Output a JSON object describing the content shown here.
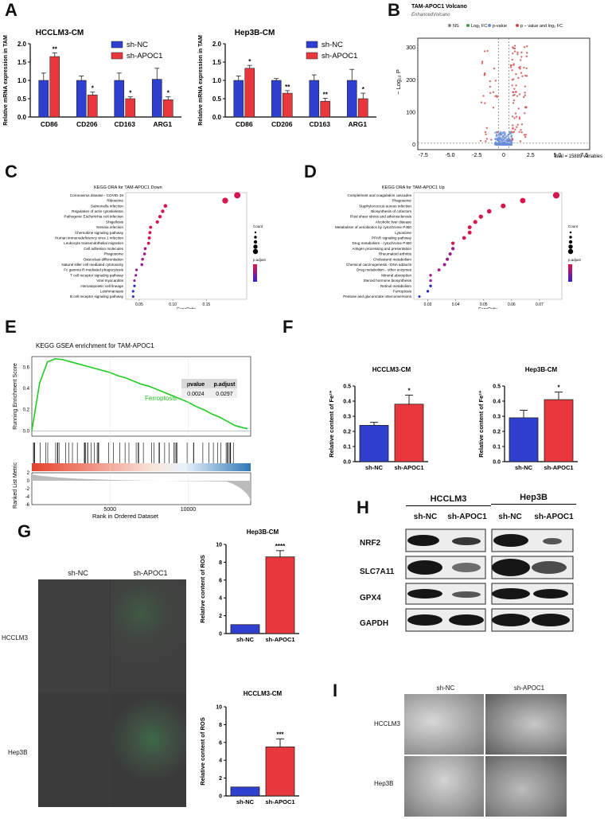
{
  "panel_labels": {
    "A": "A",
    "B": "B",
    "C": "C",
    "D": "D",
    "E": "E",
    "F": "F",
    "G": "G",
    "H": "H",
    "I": "I"
  },
  "colors": {
    "nc": "#2f3fd0",
    "apoc1": "#e8383d",
    "green": "#22bb22",
    "gsea_line": "#22cc22"
  },
  "chart_data": [
    {
      "id": "A1",
      "type": "bar",
      "title": "HCCLM3-CM",
      "ylabel": "Relative mRNA expression in TAM",
      "categories": [
        "CD86",
        "CD206",
        "CD163",
        "ARG1"
      ],
      "series": [
        {
          "name": "sh-NC",
          "values": [
            1.0,
            1.0,
            1.0,
            1.03
          ],
          "errors": [
            0.2,
            0.12,
            0.2,
            0.3
          ]
        },
        {
          "name": "sh-APOC1",
          "values": [
            1.65,
            0.6,
            0.5,
            0.47
          ],
          "errors": [
            0.1,
            0.08,
            0.05,
            0.08
          ]
        }
      ],
      "sig": [
        "**",
        "*",
        "*",
        "*"
      ],
      "ylim": [
        0,
        2.0
      ],
      "yticks": [
        "0.0",
        "0.5",
        "1.0",
        "1.5",
        "2.0"
      ]
    },
    {
      "id": "A2",
      "type": "bar",
      "title": "Hep3B-CM",
      "ylabel": "Relative mRNA expression in TAM",
      "categories": [
        "CD86",
        "CD206",
        "CD163",
        "ARG1"
      ],
      "series": [
        {
          "name": "sh-NC",
          "values": [
            1.0,
            1.0,
            1.0,
            1.0
          ],
          "errors": [
            0.12,
            0.05,
            0.15,
            0.3
          ]
        },
        {
          "name": "sh-APOC1",
          "values": [
            1.33,
            0.65,
            0.43,
            0.5
          ],
          "errors": [
            0.08,
            0.07,
            0.08,
            0.15
          ]
        }
      ],
      "sig": [
        "*",
        "**",
        "**",
        "*"
      ],
      "ylim": [
        0,
        2.0
      ],
      "yticks": [
        "0.0",
        "0.5",
        "1.0",
        "1.5",
        "2.0"
      ]
    },
    {
      "id": "B",
      "type": "scatter",
      "title": "TAM-APOC1 Volcano",
      "subtitle": "EnhancedVolcano",
      "legend": [
        "NS",
        "Log₂ FC",
        "p-value",
        "p − value and log₂ FC"
      ],
      "xlabel": "Log₂ fold change",
      "ylabel": "− Log₁₀ P",
      "xticks": [
        "-7.5",
        "-5.0",
        "-2.5",
        "0",
        "2.5",
        "5.0",
        "7.5"
      ],
      "yticks": [
        "0",
        "100",
        "200",
        "300"
      ],
      "caption": "total = 15889 variables"
    },
    {
      "id": "C",
      "type": "scatter",
      "title": "KEGG ORA for TAM-APOC1 Down",
      "xlabel": "GeneRatio",
      "terms": [
        "Coronavirus disease - COVID-19",
        "Ribosome",
        "Salmonella infection",
        "Regulation of actin cytoskeleton",
        "Pathogenic Escherichia coli infection",
        "Shigellosis",
        "Yersinia infection",
        "Chemokine signaling pathway",
        "Human immunodeficiency virus 1 infection",
        "Leukocyte transendothelial migration",
        "Cell adhesion molecules",
        "Phagosome",
        "Osteoclast differentiation",
        "Natural killer cell mediated cytotoxicity",
        "Fc gamma R-mediated phagocytosis",
        "T cell receptor signaling pathway",
        "Viral myocarditis",
        "Hematopoietic cell lineage",
        "Leishmaniasis",
        "B cell receptor signaling pathway"
      ],
      "x": [
        0.196,
        0.178,
        0.089,
        0.085,
        0.081,
        0.077,
        0.067,
        0.066,
        0.065,
        0.064,
        0.059,
        0.058,
        0.055,
        0.054,
        0.046,
        0.045,
        0.043,
        0.043,
        0.041,
        0.041
      ],
      "xticks": [
        "0.05",
        "0.10",
        "0.15"
      ],
      "xtick_values": [
        0.05,
        0.1,
        0.15
      ],
      "xlim": [
        0.03,
        0.21
      ],
      "legend_count": "Count",
      "legend_padj": "p.adjust"
    },
    {
      "id": "D",
      "type": "scatter",
      "title": "KEGG ORA for TAM-APOC1 Up",
      "xlabel": "GeneRatio",
      "terms": [
        "Complement and coagulation cascades",
        "Phagosome",
        "Staphylococcus aureus infection",
        "Biosynthesis of cofactors",
        "Fluid shear stress and atherosclerosis",
        "Alcoholic liver disease",
        "Metabolism of xenobiotics by cytochrome P450",
        "Lysosome",
        "PPAR signaling pathway",
        "Drug metabolism - cytochrome P450",
        "Antigen processing and presentation",
        "Rheumatoid arthritis",
        "Cholesterol metabolism",
        "Chemical carcinogenesis - DNA adducts",
        "Drug metabolism - other enzymes",
        "Mineral absorption",
        "Steroid hormone biosynthesis",
        "Retinol metabolism",
        "Ferroptosis",
        "Pentose and glucuronate interconversions"
      ],
      "x": [
        0.076,
        0.064,
        0.057,
        0.052,
        0.049,
        0.047,
        0.045,
        0.045,
        0.043,
        0.039,
        0.039,
        0.038,
        0.037,
        0.036,
        0.034,
        0.031,
        0.031,
        0.031,
        0.03,
        0.027
      ],
      "xticks": [
        "0.03",
        "0.04",
        "0.05",
        "0.06",
        "0.07"
      ],
      "xtick_values": [
        0.03,
        0.04,
        0.05,
        0.06,
        0.07
      ],
      "xlim": [
        0.025,
        0.078
      ],
      "legend_count": "Count",
      "legend_padj": "p.adjust"
    },
    {
      "id": "E",
      "type": "line",
      "title": "KEGG GSEA enrichment for TAM-APOC1",
      "ylabel_top": "Running Enrichment Score",
      "ylabel_bottom": "Ranked List Metric",
      "xlabel": "Rank in Ordered Dataset",
      "series_name": "Ferroptosis",
      "table_headers": [
        "pvalue",
        "p.adjust"
      ],
      "table_values": [
        "0.0024",
        "0.0297"
      ],
      "yticks_top": [
        "0.0",
        "0.2",
        "0.4",
        "0.6"
      ],
      "yticks_bottom": [
        "2",
        "0",
        "-2",
        "-4",
        "-6"
      ],
      "xticks": [
        "5000",
        "10000"
      ],
      "xtick_values": [
        5000,
        10000
      ],
      "xlim": [
        0,
        14000
      ],
      "x": [
        0,
        500,
        1000,
        1500,
        2000,
        2500,
        3000,
        3500,
        4000,
        4500,
        5000,
        5500,
        6000,
        6500,
        7000,
        7500,
        8000,
        8500,
        9000,
        9500,
        10000,
        10500,
        11000,
        11500,
        12000,
        12500,
        13000,
        13500,
        13800
      ],
      "y": [
        0.0,
        0.45,
        0.65,
        0.68,
        0.67,
        0.65,
        0.63,
        0.61,
        0.59,
        0.57,
        0.55,
        0.52,
        0.5,
        0.47,
        0.44,
        0.42,
        0.39,
        0.36,
        0.33,
        0.3,
        0.27,
        0.23,
        0.2,
        0.16,
        0.13,
        0.09,
        0.05,
        0.03,
        0.02
      ]
    },
    {
      "id": "F1",
      "type": "bar",
      "title": "HCCLM3-CM",
      "ylabel": "Relative content of Fe²⁺",
      "categories": [
        "sh-NC",
        "sh-APOC1"
      ],
      "values": [
        0.24,
        0.38
      ],
      "errors": [
        0.02,
        0.06
      ],
      "sig": [
        "",
        "*"
      ],
      "ylim": [
        0,
        0.5
      ],
      "yticks": [
        "0.0",
        "0.1",
        "0.2",
        "0.3",
        "0.4",
        "0.5"
      ]
    },
    {
      "id": "F2",
      "type": "bar",
      "title": "Hep3B-CM",
      "ylabel": "Relative content of Fe²⁺",
      "categories": [
        "sh-NC",
        "sh-APOC1"
      ],
      "values": [
        0.29,
        0.41
      ],
      "errors": [
        0.05,
        0.05
      ],
      "sig": [
        "",
        "*"
      ],
      "ylim": [
        0,
        0.5
      ],
      "yticks": [
        "0.0",
        "0.1",
        "0.2",
        "0.3",
        "0.4",
        "0.5"
      ]
    },
    {
      "id": "G1",
      "type": "bar",
      "title": "Hep3B-CM",
      "ylabel": "Relative content of ROS",
      "categories": [
        "sh-NC",
        "sh-APOC1"
      ],
      "values": [
        1.0,
        8.6
      ],
      "errors": [
        0,
        0.7
      ],
      "sig": [
        "",
        "****"
      ],
      "ylim": [
        0,
        10
      ],
      "yticks": [
        "0",
        "2",
        "4",
        "6",
        "8",
        "10"
      ]
    },
    {
      "id": "G2",
      "type": "bar",
      "title": "HCCLM3-CM",
      "ylabel": "Relative content of ROS",
      "categories": [
        "sh-NC",
        "sh-APOC1"
      ],
      "values": [
        1.0,
        5.5
      ],
      "errors": [
        0,
        0.9
      ],
      "sig": [
        "",
        "***"
      ],
      "ylim": [
        0,
        10
      ],
      "yticks": [
        "0",
        "2",
        "4",
        "6",
        "8",
        "10"
      ]
    }
  ],
  "fluor": {
    "col1": "sh-NC",
    "col2": "sh-APOC1",
    "row1": "HCCLM3",
    "row2": "Hep3B"
  },
  "blot": {
    "group1": "HCCLM3",
    "group2": "Hep3B",
    "lane_labels": [
      "sh-NC",
      "sh-APOC1",
      "sh-NC",
      "sh-APOC1"
    ],
    "proteins": [
      "NRF2",
      "SLC7A11",
      "GPX4",
      "GAPDH"
    ]
  },
  "em": {
    "col1": "sh-NC",
    "col2": "sh-APOC1",
    "row1": "HCCLM3",
    "row2": "Hep3B"
  }
}
